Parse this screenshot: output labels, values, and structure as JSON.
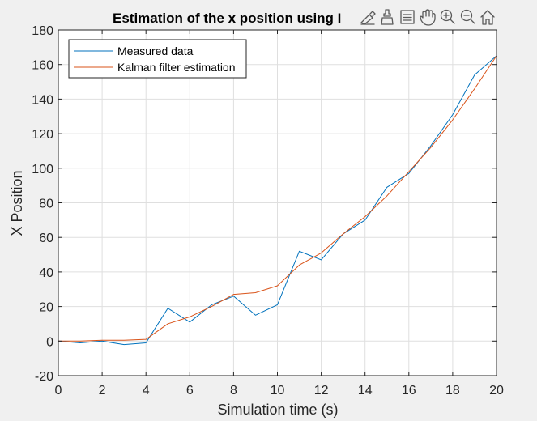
{
  "chart_data": {
    "type": "line",
    "title": "Estimation of the x position using I",
    "xlabel": "Simulation time (s)",
    "ylabel": "X Position",
    "xlim": [
      0,
      20
    ],
    "ylim": [
      -20,
      180
    ],
    "xticks": [
      0,
      2,
      4,
      6,
      8,
      10,
      12,
      14,
      16,
      18,
      20
    ],
    "yticks": [
      -20,
      0,
      20,
      40,
      60,
      80,
      100,
      120,
      140,
      160,
      180
    ],
    "grid": true,
    "legend_position": "top-left",
    "x": [
      0,
      1,
      2,
      3,
      4,
      5,
      6,
      7,
      8,
      9,
      10,
      11,
      12,
      13,
      14,
      15,
      16,
      17,
      18,
      19,
      20
    ],
    "series": [
      {
        "name": "Measured data",
        "color": "#0072BD",
        "values": [
          0,
          -1,
          0,
          -2,
          -1,
          19,
          11,
          21,
          26,
          15,
          21,
          52,
          47,
          62,
          70,
          89,
          97,
          113,
          131,
          154,
          165
        ]
      },
      {
        "name": "Kalman filter estimation",
        "color": "#D95319",
        "values": [
          0,
          0,
          0.5,
          0.5,
          1,
          10,
          14,
          20,
          27,
          28,
          32,
          44,
          51,
          62,
          72,
          84,
          98,
          112,
          128,
          146,
          165
        ]
      }
    ]
  },
  "toolbar": {
    "icons": [
      "brush-icon",
      "data-tips-icon",
      "legend-icon",
      "pan-hand-icon",
      "zoom-in-icon",
      "zoom-out-icon",
      "home-icon"
    ]
  }
}
